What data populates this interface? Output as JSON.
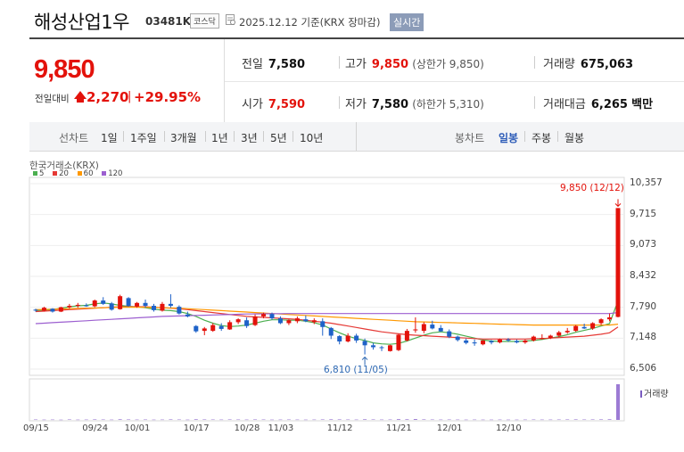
{
  "header": {
    "name": "해성산업1우",
    "code": "03481K",
    "market": "코스닥",
    "date_text": "2025.12.12 기준(KRX 장마감)",
    "realtime": "실시간"
  },
  "quote": {
    "price": "9,850",
    "change_label": "전일대비",
    "change": "2,270",
    "change_sep": "|",
    "change_rate": "+29.95%",
    "prev_close_label": "전일",
    "prev_close": "7,580",
    "high_label": "고가",
    "high": "9,850",
    "upper_limit": "(상한가 9,850)",
    "volume_label": "거래량",
    "volume": "675,063",
    "open_label": "시가",
    "open": "7,590",
    "low_label": "저가",
    "low": "7,580",
    "lower_limit": "(하한가 5,310)",
    "amount_label": "거래대금",
    "amount": "6,265",
    "amount_unit": "백만"
  },
  "toolbar": {
    "line_label": "선차트",
    "periods": [
      "1일",
      "1주일",
      "3개월",
      "1년",
      "3년",
      "5년",
      "10년"
    ],
    "candle_label": "봉차트",
    "candles": [
      "일봉",
      "주봉",
      "월봉"
    ],
    "selected_candle": "일봉"
  },
  "chart_data": {
    "type": "candlestick",
    "source": "한국거래소(KRX)",
    "legend": [
      "5",
      "20",
      "60",
      "120"
    ],
    "legend_colors": [
      "#4caf50",
      "#e53935",
      "#ff9800",
      "#9c5fd0"
    ],
    "y_ticks": [
      "10,357",
      "9,715",
      "9,073",
      "8,432",
      "7,790",
      "7,148",
      "6,506"
    ],
    "ylim": [
      6506,
      10357
    ],
    "x_ticks": [
      "09/15",
      "09/24",
      "10/01",
      "10/17",
      "10/28",
      "11/03",
      "11/12",
      "11/21",
      "12/01",
      "12/10"
    ],
    "x_tick_index": [
      0,
      7,
      12,
      19,
      25,
      29,
      36,
      43,
      49,
      56
    ],
    "high_annotation": "9,850 (12/12)",
    "low_annotation": "6,810 (11/05)",
    "volume_label": "거래량",
    "candles": [
      [
        7740,
        7760,
        7700,
        7730
      ],
      [
        7720,
        7800,
        7700,
        7780
      ],
      [
        7760,
        7770,
        7680,
        7700
      ],
      [
        7700,
        7800,
        7690,
        7790
      ],
      [
        7790,
        7860,
        7760,
        7820
      ],
      [
        7820,
        7880,
        7780,
        7840
      ],
      [
        7830,
        7870,
        7800,
        7810
      ],
      [
        7810,
        7950,
        7790,
        7930
      ],
      [
        7930,
        8000,
        7840,
        7860
      ],
      [
        7870,
        7900,
        7720,
        7740
      ],
      [
        7750,
        8050,
        7740,
        8020
      ],
      [
        7980,
        8000,
        7800,
        7820
      ],
      [
        7810,
        7900,
        7780,
        7880
      ],
      [
        7880,
        7950,
        7780,
        7820
      ],
      [
        7820,
        7860,
        7700,
        7730
      ],
      [
        7720,
        7900,
        7700,
        7860
      ],
      [
        7860,
        8060,
        7780,
        7820
      ],
      [
        7800,
        7830,
        7640,
        7660
      ],
      [
        7640,
        7700,
        7580,
        7600
      ],
      [
        7400,
        7420,
        7260,
        7290
      ],
      [
        7300,
        7380,
        7210,
        7350
      ],
      [
        7300,
        7460,
        7280,
        7420
      ],
      [
        7400,
        7460,
        7300,
        7340
      ],
      [
        7330,
        7520,
        7320,
        7480
      ],
      [
        7480,
        7560,
        7440,
        7540
      ],
      [
        7520,
        7580,
        7360,
        7400
      ],
      [
        7420,
        7640,
        7400,
        7600
      ],
      [
        7600,
        7680,
        7560,
        7650
      ],
      [
        7650,
        7680,
        7530,
        7560
      ],
      [
        7560,
        7600,
        7440,
        7460
      ],
      [
        7460,
        7540,
        7420,
        7520
      ],
      [
        7500,
        7600,
        7460,
        7560
      ],
      [
        7540,
        7620,
        7480,
        7500
      ],
      [
        7480,
        7560,
        7440,
        7520
      ],
      [
        7500,
        7560,
        7200,
        7380
      ],
      [
        7360,
        7380,
        7130,
        7200
      ],
      [
        7190,
        7210,
        7020,
        7080
      ],
      [
        7080,
        7250,
        7060,
        7200
      ],
      [
        7200,
        7240,
        7050,
        7100
      ],
      [
        7090,
        7140,
        6810,
        7000
      ],
      [
        7000,
        7050,
        6910,
        6960
      ],
      [
        6960,
        6990,
        6880,
        6950
      ],
      [
        6880,
        7010,
        6870,
        7000
      ],
      [
        6900,
        7230,
        6880,
        7220
      ],
      [
        7100,
        7340,
        7080,
        7300
      ],
      [
        7310,
        7580,
        7260,
        7330
      ],
      [
        7300,
        7480,
        7250,
        7440
      ],
      [
        7430,
        7510,
        7330,
        7350
      ],
      [
        7360,
        7420,
        7280,
        7290
      ],
      [
        7290,
        7330,
        7150,
        7180
      ],
      [
        7180,
        7200,
        7080,
        7110
      ],
      [
        7100,
        7140,
        7020,
        7050
      ],
      [
        7060,
        7120,
        6990,
        7040
      ],
      [
        7020,
        7110,
        7000,
        7100
      ],
      [
        7090,
        7110,
        7020,
        7060
      ],
      [
        7060,
        7140,
        7040,
        7120
      ],
      [
        7120,
        7150,
        7070,
        7100
      ],
      [
        7090,
        7120,
        7040,
        7060
      ],
      [
        7060,
        7120,
        7030,
        7100
      ],
      [
        7100,
        7200,
        7080,
        7180
      ],
      [
        7150,
        7230,
        7120,
        7150
      ],
      [
        7150,
        7220,
        7130,
        7200
      ],
      [
        7200,
        7300,
        7170,
        7270
      ],
      [
        7270,
        7360,
        7240,
        7300
      ],
      [
        7300,
        7420,
        7280,
        7400
      ],
      [
        7380,
        7450,
        7340,
        7350
      ],
      [
        7350,
        7480,
        7320,
        7460
      ],
      [
        7460,
        7560,
        7420,
        7540
      ],
      [
        7540,
        7660,
        7500,
        7580
      ],
      [
        7590,
        9850,
        7580,
        9850
      ]
    ],
    "ma": {
      "ma5": [
        7720,
        7730,
        7740,
        7770,
        7800,
        7820,
        7830,
        7860,
        7880,
        7860,
        7830,
        7810,
        7800,
        7780,
        7750,
        7730,
        7720,
        7700,
        7660,
        7600,
        7520,
        7460,
        7410,
        7390,
        7400,
        7420,
        7460,
        7500,
        7530,
        7530,
        7520,
        7520,
        7500,
        7470,
        7420,
        7340,
        7260,
        7190,
        7140,
        7100,
        7050,
        7030,
        7020,
        7040,
        7090,
        7150,
        7210,
        7260,
        7280,
        7260,
        7230,
        7190,
        7150,
        7110,
        7090,
        7080,
        7080,
        7080,
        7090,
        7100,
        7120,
        7150,
        7180,
        7220,
        7270,
        7310,
        7350,
        7400,
        7450,
        7920
      ],
      "ma20": [
        7700,
        7710,
        7720,
        7730,
        7740,
        7750,
        7760,
        7770,
        7780,
        7790,
        7800,
        7800,
        7800,
        7800,
        7790,
        7780,
        7770,
        7760,
        7740,
        7720,
        7700,
        7680,
        7660,
        7640,
        7620,
        7600,
        7590,
        7580,
        7570,
        7560,
        7550,
        7540,
        7520,
        7500,
        7480,
        7460,
        7430,
        7400,
        7370,
        7340,
        7310,
        7280,
        7260,
        7240,
        7220,
        7210,
        7200,
        7190,
        7180,
        7170,
        7160,
        7150,
        7140,
        7130,
        7130,
        7130,
        7130,
        7130,
        7130,
        7140,
        7140,
        7150,
        7160,
        7170,
        7180,
        7190,
        7210,
        7230,
        7260,
        7380
      ],
      "ma60": [
        7740,
        7745,
        7750,
        7755,
        7760,
        7765,
        7770,
        7775,
        7780,
        7785,
        7790,
        7790,
        7790,
        7790,
        7785,
        7780,
        7775,
        7770,
        7760,
        7750,
        7740,
        7730,
        7720,
        7710,
        7700,
        7690,
        7680,
        7670,
        7660,
        7650,
        7640,
        7630,
        7620,
        7610,
        7600,
        7590,
        7580,
        7570,
        7560,
        7550,
        7540,
        7530,
        7520,
        7510,
        7500,
        7490,
        7485,
        7480,
        7475,
        7470,
        7465,
        7460,
        7455,
        7450,
        7445,
        7440,
        7435,
        7430,
        7425,
        7420,
        7420,
        7420,
        7420,
        7420,
        7420,
        7420,
        7420,
        7420,
        7420,
        7440
      ],
      "ma120": [
        7450,
        7460,
        7470,
        7480,
        7490,
        7500,
        7510,
        7520,
        7530,
        7540,
        7550,
        7560,
        7570,
        7580,
        7590,
        7600,
        7605,
        7610,
        7615,
        7620,
        7625,
        7630,
        7635,
        7640,
        7645,
        7650,
        7652,
        7654,
        7656,
        7658,
        7660,
        7660,
        7660,
        7660,
        7660,
        7660,
        7660,
        7660,
        7660,
        7660,
        7660,
        7660,
        7660,
        7660,
        7660,
        7660,
        7660,
        7660,
        7660,
        7660,
        7660,
        7660,
        7660,
        7660,
        7660,
        7660,
        7660,
        7660,
        7660,
        7660,
        7660,
        7660,
        7660,
        7660,
        7660,
        7660,
        7660,
        7660,
        7660,
        7680
      ]
    },
    "volume": [
      8,
      6,
      7,
      5,
      9,
      6,
      7,
      10,
      8,
      6,
      12,
      9,
      7,
      8,
      6,
      7,
      10,
      8,
      6,
      12,
      9,
      8,
      7,
      9,
      8,
      7,
      9,
      8,
      6,
      7,
      8,
      7,
      6,
      7,
      9,
      11,
      10,
      8,
      7,
      12,
      9,
      7,
      8,
      14,
      12,
      16,
      10,
      8,
      7,
      8,
      7,
      6,
      7,
      6,
      6,
      7,
      6,
      6,
      7,
      8,
      7,
      7,
      8,
      9,
      10,
      8,
      9,
      10,
      12,
      675
    ]
  }
}
